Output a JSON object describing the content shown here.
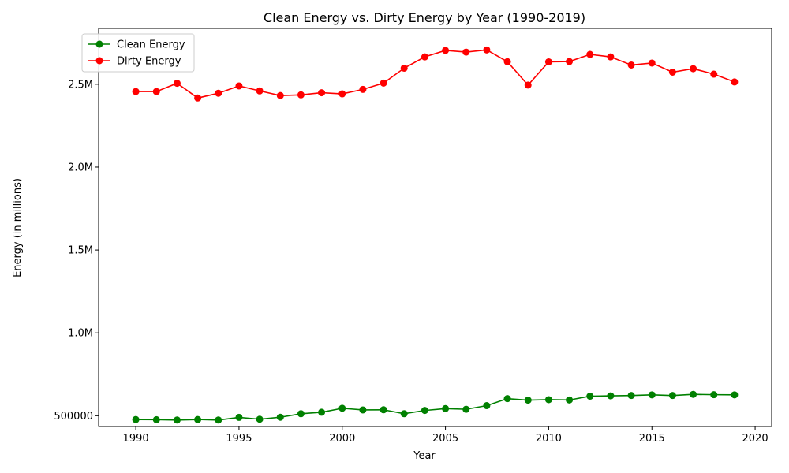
{
  "chart_data": {
    "type": "line",
    "title": "Clean Energy vs. Dirty Energy by Year (1990-2019)",
    "xlabel": "Year",
    "ylabel": "Energy (in millions)",
    "x": [
      1990,
      1991,
      1992,
      1993,
      1994,
      1995,
      1996,
      1997,
      1998,
      1999,
      2000,
      2001,
      2002,
      2003,
      2004,
      2005,
      2006,
      2007,
      2008,
      2009,
      2010,
      2011,
      2012,
      2013,
      2014,
      2015,
      2016,
      2017,
      2018,
      2019
    ],
    "xlim": [
      1988.2,
      2020.8
    ],
    "ylim": [
      435000,
      2837000
    ],
    "x_ticks": [
      1990,
      1995,
      2000,
      2005,
      2010,
      2015,
      2020
    ],
    "x_tick_labels": [
      "1990",
      "1995",
      "2000",
      "2005",
      "2010",
      "2015",
      "2020"
    ],
    "y_ticks": [
      500000,
      1000000,
      1500000,
      2000000,
      2500000
    ],
    "y_tick_labels": [
      "500000",
      "1.0M",
      "1.5M",
      "2.0M",
      "2.5M"
    ],
    "grid": false,
    "legend_position": "top-left",
    "series": [
      {
        "name": "Clean Energy",
        "color": "#008000",
        "values": [
          477000,
          476000,
          474000,
          477000,
          474000,
          490000,
          479000,
          491000,
          512000,
          521000,
          545000,
          535000,
          536000,
          512000,
          532000,
          543000,
          539000,
          561000,
          603000,
          594000,
          597000,
          595000,
          618000,
          620000,
          622000,
          626000,
          622000,
          629000,
          627000,
          626000
        ]
      },
      {
        "name": "Dirty Energy",
        "color": "#ff0000",
        "values": [
          2456000,
          2456000,
          2506000,
          2417000,
          2446000,
          2490000,
          2460000,
          2432000,
          2436000,
          2449000,
          2442000,
          2469000,
          2507000,
          2597000,
          2665000,
          2704000,
          2694000,
          2707000,
          2636000,
          2495000,
          2635000,
          2637000,
          2680000,
          2665000,
          2616000,
          2628000,
          2573000,
          2594000,
          2561000,
          2514000
        ]
      }
    ]
  }
}
